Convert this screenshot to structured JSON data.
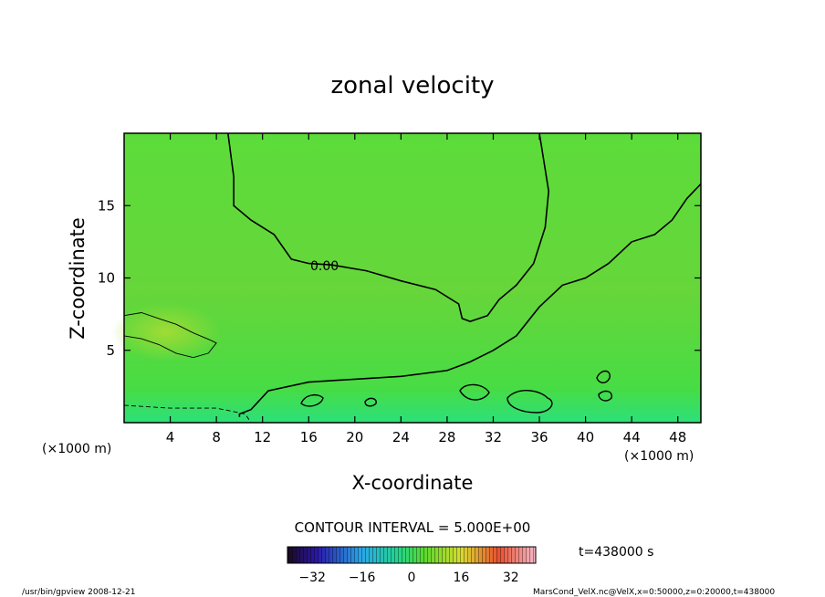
{
  "chart_data": {
    "type": "heatmap",
    "title": "zonal velocity",
    "xlabel": "X-coordinate",
    "ylabel": "Z-coordinate",
    "x_unit": "(×1000 m)",
    "y_unit": "(×1000 m)",
    "xlim": [
      0,
      50
    ],
    "ylim": [
      0,
      20
    ],
    "x_ticks": [
      "4",
      "8",
      "12",
      "16",
      "20",
      "24",
      "28",
      "32",
      "36",
      "40",
      "44",
      "48"
    ],
    "y_ticks": [
      "5",
      "10",
      "15"
    ],
    "contour_label": "0.00",
    "contour_interval_text": "CONTOUR INTERVAL = 5.000E+00",
    "colorbar": {
      "min": -40,
      "max": 40,
      "ticks": [
        "−32",
        "−16",
        "0",
        "16",
        "32"
      ]
    },
    "time_text": "t=438000 s",
    "footer_left": "/usr/bin/gpview  2008-12-21",
    "footer_right": "MarsCond_VelX.nc@VelX,x=0:50000,z=0:20000,t=438000",
    "zero_contour": [
      [
        10,
        0.4
      ],
      [
        10,
        0.6
      ],
      [
        11,
        0.9
      ],
      [
        12.5,
        2.2
      ],
      [
        16,
        2.8
      ],
      [
        20,
        3.0
      ],
      [
        24,
        3.2
      ],
      [
        28,
        3.6
      ],
      [
        30,
        4.2
      ],
      [
        32,
        5
      ],
      [
        34,
        6
      ],
      [
        36,
        8
      ],
      [
        38,
        9.5
      ],
      [
        40,
        10
      ],
      [
        42,
        11
      ],
      [
        44,
        12.5
      ],
      [
        46,
        13
      ],
      [
        47.5,
        14
      ],
      [
        48.8,
        15.5
      ],
      [
        50,
        16.5
      ]
    ],
    "main_contour": [
      [
        9,
        20
      ],
      [
        9.5,
        17
      ],
      [
        9.5,
        15
      ],
      [
        11,
        14
      ],
      [
        13,
        13
      ],
      [
        14.5,
        11.3
      ],
      [
        16,
        11
      ],
      [
        18,
        10.9
      ],
      [
        21,
        10.5
      ],
      [
        24,
        9.8
      ],
      [
        27,
        9.2
      ],
      [
        29,
        8.2
      ],
      [
        29.3,
        7.2
      ],
      [
        30,
        7.0
      ],
      [
        31.5,
        7.4
      ],
      [
        32.5,
        8.5
      ],
      [
        34,
        9.5
      ],
      [
        35.5,
        11
      ],
      [
        36.5,
        13.5
      ],
      [
        36.8,
        16
      ],
      [
        36.2,
        19
      ],
      [
        36,
        20
      ]
    ],
    "positive_contour": [
      [
        0,
        7.4
      ],
      [
        1.5,
        7.6
      ],
      [
        3,
        7.2
      ],
      [
        4.5,
        6.8
      ],
      [
        6,
        6.2
      ],
      [
        7.5,
        5.7
      ],
      [
        8,
        5.5
      ],
      [
        7.3,
        4.8
      ],
      [
        6,
        4.5
      ],
      [
        4.5,
        4.8
      ],
      [
        3,
        5.4
      ],
      [
        1.5,
        5.8
      ],
      [
        0,
        6.0
      ]
    ],
    "negative_contour": [
      [
        0,
        1.2
      ],
      [
        4,
        1.0
      ],
      [
        8,
        1.0
      ],
      [
        10.5,
        0.6
      ],
      [
        11,
        0
      ]
    ]
  }
}
